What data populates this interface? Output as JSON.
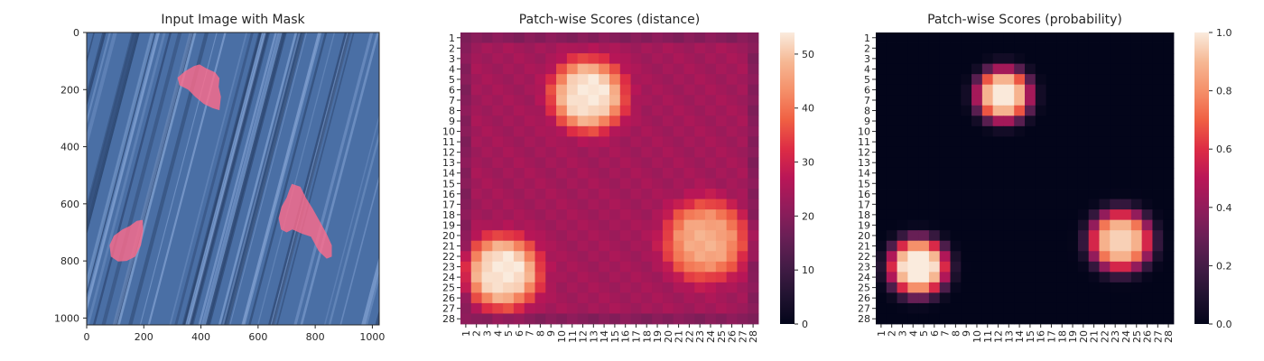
{
  "chart_data": [
    {
      "type": "image",
      "title": "Input Image with Mask",
      "xlim": [
        0,
        1024
      ],
      "ylim": [
        1024,
        0
      ],
      "x_ticks": [
        0,
        200,
        400,
        600,
        800,
        1000
      ],
      "y_ticks": [
        0,
        200,
        400,
        600,
        800,
        1000
      ],
      "background_color": "#4a6fa5",
      "mask_color": "#ff6b8b",
      "mask_regions": [
        {
          "name": "top",
          "points": [
            [
              318,
              158
            ],
            [
              345,
              135
            ],
            [
              375,
              118
            ],
            [
              395,
              112
            ],
            [
              418,
              125
            ],
            [
              450,
              140
            ],
            [
              465,
              160
            ],
            [
              462,
              190
            ],
            [
              470,
              225
            ],
            [
              465,
              272
            ],
            [
              440,
              265
            ],
            [
              410,
              250
            ],
            [
              380,
              225
            ],
            [
              355,
              200
            ],
            [
              325,
              185
            ]
          ]
        },
        {
          "name": "right",
          "points": [
            [
              718,
              530
            ],
            [
              748,
              540
            ],
            [
              768,
              580
            ],
            [
              790,
              615
            ],
            [
              815,
              660
            ],
            [
              840,
              705
            ],
            [
              858,
              745
            ],
            [
              858,
              785
            ],
            [
              840,
              792
            ],
            [
              812,
              765
            ],
            [
              785,
              715
            ],
            [
              755,
              705
            ],
            [
              720,
              690
            ],
            [
              700,
              700
            ],
            [
              680,
              690
            ],
            [
              672,
              650
            ],
            [
              682,
              610
            ],
            [
              700,
              578
            ],
            [
              710,
              550
            ]
          ]
        },
        {
          "name": "left",
          "points": [
            [
              175,
              660
            ],
            [
              196,
              656
            ],
            [
              198,
              695
            ],
            [
              190,
              745
            ],
            [
              170,
              785
            ],
            [
              140,
              800
            ],
            [
              110,
              802
            ],
            [
              85,
              785
            ],
            [
              80,
              745
            ],
            [
              95,
              712
            ],
            [
              125,
              690
            ],
            [
              150,
              678
            ]
          ]
        }
      ]
    },
    {
      "type": "heatmap",
      "title": "Patch-wise Scores (distance)",
      "rows": 28,
      "cols": 28,
      "tick_labels": [
        "1",
        "2",
        "3",
        "4",
        "5",
        "6",
        "7",
        "8",
        "9",
        "10",
        "11",
        "12",
        "13",
        "14",
        "15",
        "16",
        "17",
        "18",
        "19",
        "20",
        "21",
        "22",
        "23",
        "24",
        "25",
        "26",
        "27",
        "28"
      ],
      "colorbar": {
        "min": 0,
        "max": 54,
        "ticks": [
          0,
          10,
          20,
          30,
          40,
          50
        ]
      },
      "baseline": 24,
      "blobs": [
        {
          "row": 5.5,
          "col": 11.5,
          "peak": 54,
          "sigma": 2.1
        },
        {
          "row": 22.5,
          "col": 3.5,
          "peak": 54,
          "sigma": 2.1
        },
        {
          "row": 19.5,
          "col": 22.5,
          "peak": 47,
          "sigma": 2.3
        }
      ]
    },
    {
      "type": "heatmap",
      "title": "Patch-wise Scores (probability)",
      "rows": 28,
      "cols": 28,
      "tick_labels": [
        "1",
        "2",
        "3",
        "4",
        "5",
        "6",
        "7",
        "8",
        "9",
        "10",
        "11",
        "12",
        "13",
        "14",
        "15",
        "16",
        "17",
        "18",
        "19",
        "20",
        "21",
        "22",
        "23",
        "24",
        "25",
        "26",
        "27",
        "28"
      ],
      "colorbar": {
        "min": 0,
        "max": 1,
        "ticks": [
          0.0,
          0.2,
          0.4,
          0.6,
          0.8,
          1.0
        ],
        "tick_labels": [
          "0.0",
          "0.2",
          "0.4",
          "0.6",
          "0.8",
          "1.0"
        ]
      },
      "baseline": 0,
      "blobs": [
        {
          "row": 5.5,
          "col": 11.5,
          "peak": 1.0,
          "sigma": 1.6
        },
        {
          "row": 22,
          "col": 3.5,
          "peak": 1.05,
          "sigma": 1.7
        },
        {
          "row": 19.5,
          "col": 22.5,
          "peak": 0.95,
          "sigma": 1.8
        }
      ]
    }
  ]
}
